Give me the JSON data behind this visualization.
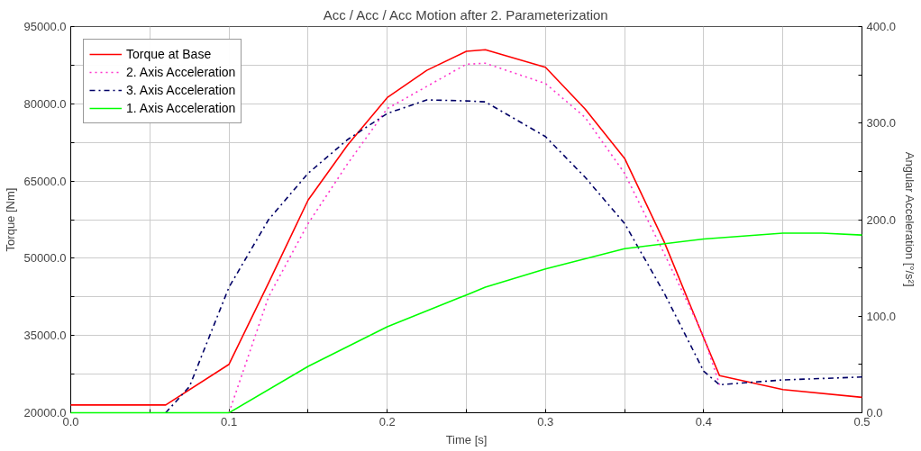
{
  "chart_data": {
    "type": "line",
    "title": "Acc / Acc / Acc Motion after 2. Parameterization",
    "xlabel": "Time [s]",
    "ylabel": "Torque [Nm]",
    "y2label": "Angular Acceleration [°/s²]",
    "xlim": [
      0,
      0.5
    ],
    "xticks": [
      {
        "value": 0,
        "label": "0.0"
      },
      {
        "value": 0.05,
        "label": null
      },
      {
        "value": 0.1,
        "label": "0.1"
      },
      {
        "value": 0.15,
        "label": null
      },
      {
        "value": 0.2,
        "label": "0.2"
      },
      {
        "value": 0.25,
        "label": null
      },
      {
        "value": 0.3,
        "label": "0.3"
      },
      {
        "value": 0.35,
        "label": null
      },
      {
        "value": 0.4,
        "label": "0.4"
      },
      {
        "value": 0.45,
        "label": null
      },
      {
        "value": 0.5,
        "label": "0.5"
      }
    ],
    "ylim": [
      20000,
      95000
    ],
    "yticks": [
      {
        "value": 20000,
        "label": "20000.0"
      },
      {
        "value": 27500,
        "label": null
      },
      {
        "value": 35000,
        "label": "35000.0"
      },
      {
        "value": 42500,
        "label": null
      },
      {
        "value": 50000,
        "label": "50000.0"
      },
      {
        "value": 57500,
        "label": null
      },
      {
        "value": 65000,
        "label": "65000.0"
      },
      {
        "value": 72500,
        "label": null
      },
      {
        "value": 80000,
        "label": "80000.0"
      },
      {
        "value": 87500,
        "label": null
      },
      {
        "value": 95000,
        "label": "95000.0"
      }
    ],
    "y2lim": [
      0,
      400
    ],
    "y2ticks": [
      {
        "value": 0,
        "label": "0.0"
      },
      {
        "value": 50,
        "label": null
      },
      {
        "value": 100,
        "label": "100.0"
      },
      {
        "value": 150,
        "label": null
      },
      {
        "value": 200,
        "label": "200.0"
      },
      {
        "value": 250,
        "label": null
      },
      {
        "value": 300,
        "label": "300.0"
      },
      {
        "value": 350,
        "label": null
      },
      {
        "value": 400,
        "label": "400.0"
      }
    ],
    "grid": true,
    "legend": "top left",
    "marker": "none",
    "series": [
      {
        "name": "Torque at Base",
        "color": "#ff0000",
        "line_style": "solid",
        "x": [
          0,
          0.06,
          0.1,
          0.125,
          0.15,
          0.175,
          0.2,
          0.225,
          0.25,
          0.262,
          0.3,
          0.325,
          0.35,
          0.375,
          0.4,
          0.41,
          0.45,
          0.5
        ],
        "values": [
          21500,
          21500,
          29400,
          45200,
          61300,
          72000,
          81200,
          86500,
          90200,
          90500,
          87100,
          79000,
          69400,
          53200,
          34500,
          27200,
          24500,
          23000
        ]
      },
      {
        "name": "2. Axis Acceleration",
        "color": "#ff33cc",
        "line_style": "dotted",
        "axis": "y2",
        "x": [
          0.1,
          0.125,
          0.15,
          0.175,
          0.2,
          0.25,
          0.262,
          0.3,
          0.325,
          0.35,
          0.375,
          0.4,
          0.41
        ],
        "values": [
          0,
          120,
          196,
          258,
          315,
          361,
          362,
          341,
          306,
          248,
          165,
          79,
          29
        ]
      },
      {
        "name": "3. Axis Acceleration",
        "color": "#000066",
        "line_style": "dashdot",
        "axis": "y2",
        "x": [
          0.06,
          0.075,
          0.1,
          0.125,
          0.15,
          0.175,
          0.2,
          0.225,
          0.25,
          0.262,
          0.3,
          0.325,
          0.35,
          0.375,
          0.4,
          0.41,
          0.45,
          0.5
        ],
        "values": [
          0,
          27,
          130,
          200,
          248,
          283,
          310,
          324,
          323,
          322,
          286,
          244,
          196,
          124,
          43,
          29,
          34,
          37
        ]
      },
      {
        "name": "1. Axis Acceleration",
        "color": "#00ff00",
        "line_style": "solid",
        "axis": "y2",
        "x": [
          0,
          0.1,
          0.15,
          0.2,
          0.25,
          0.262,
          0.3,
          0.35,
          0.4,
          0.45,
          0.475,
          0.5
        ],
        "values": [
          0,
          0,
          48,
          89,
          122,
          130,
          149,
          170,
          180,
          186,
          186,
          184
        ]
      }
    ]
  }
}
